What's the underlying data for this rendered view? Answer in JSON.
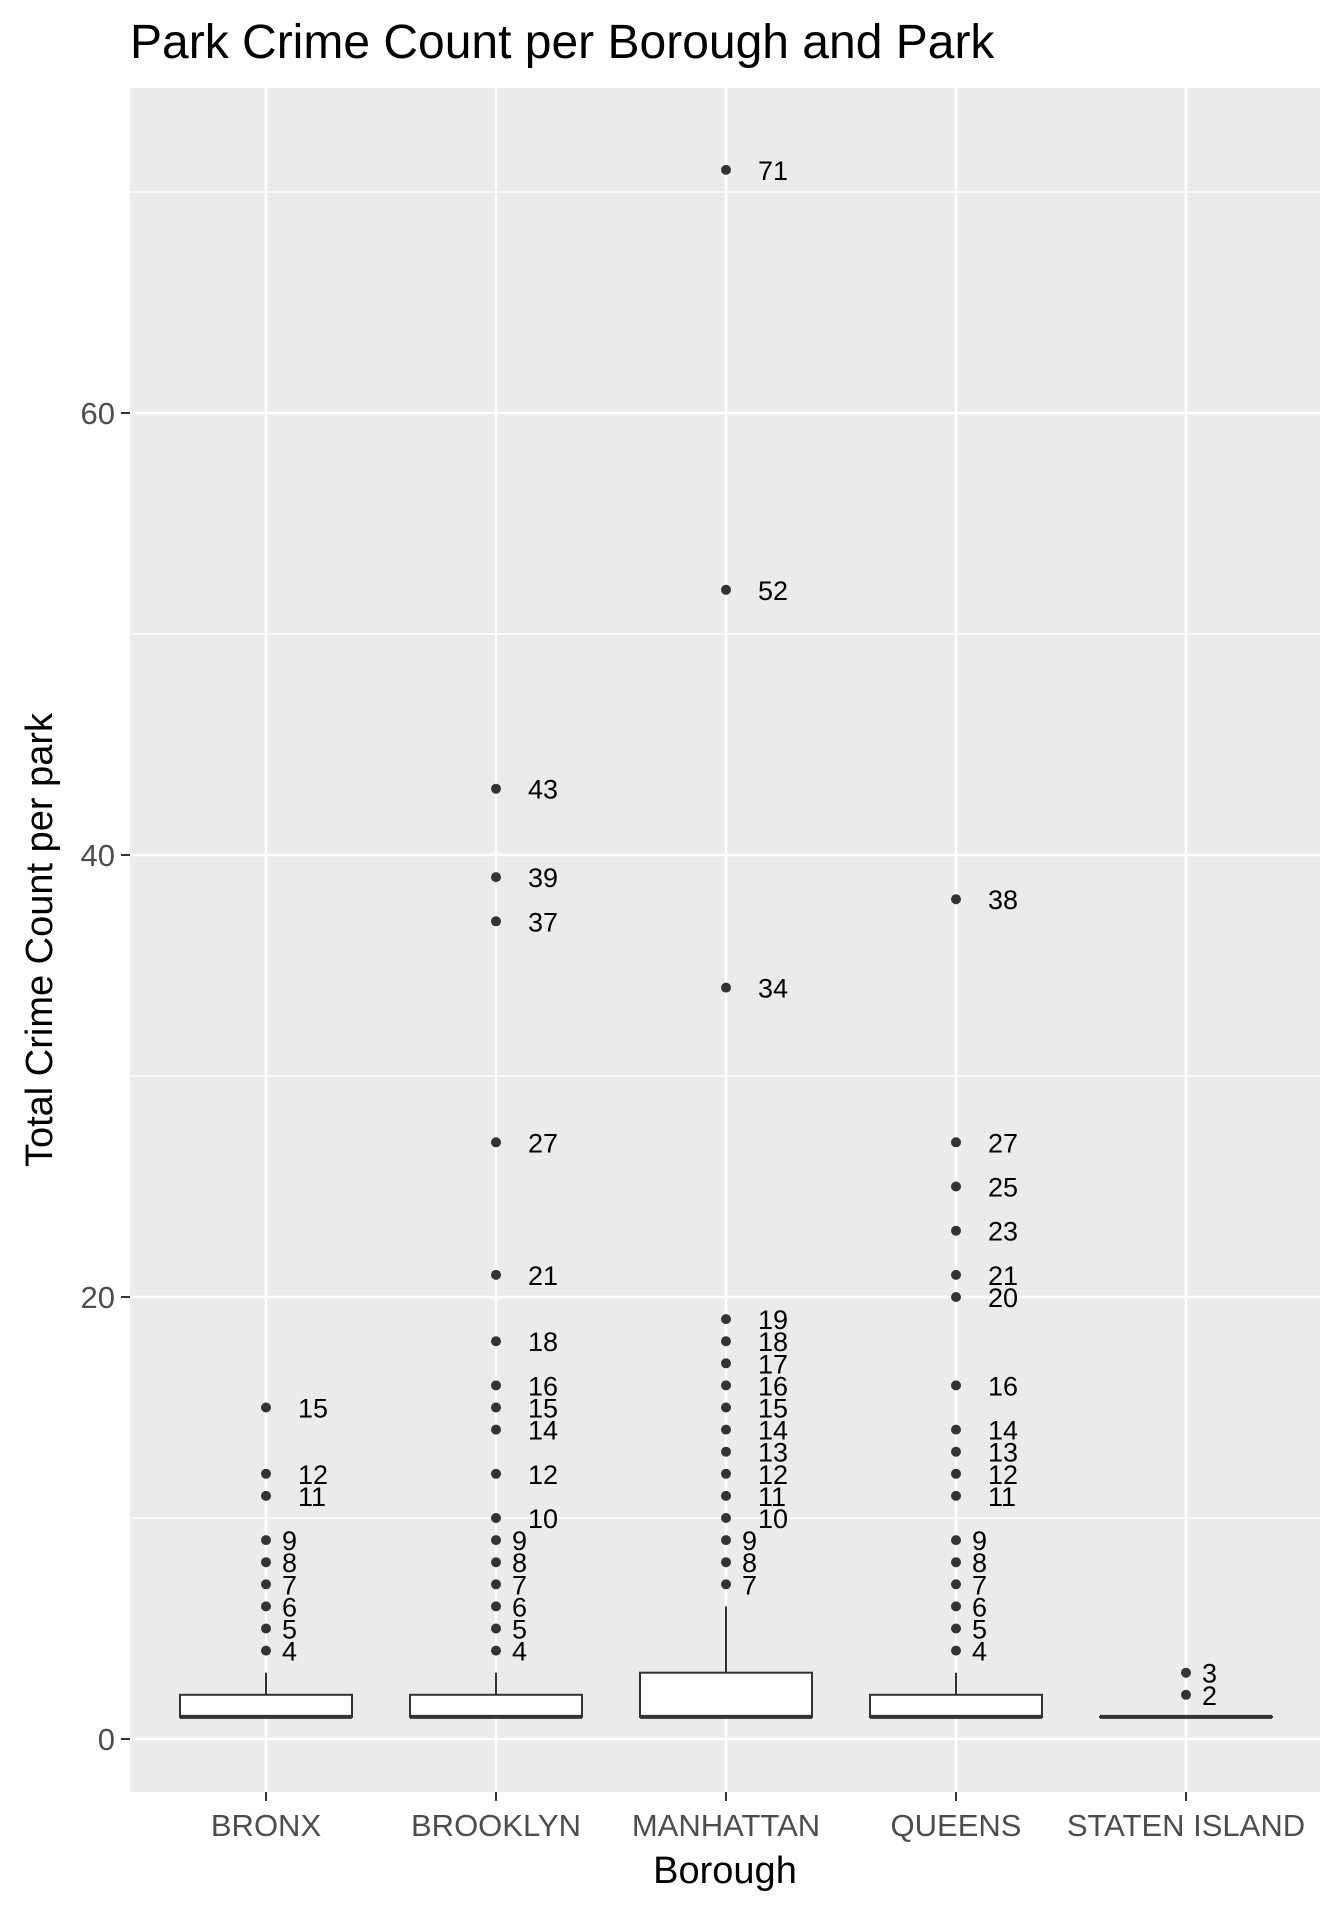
{
  "chart_data": {
    "type": "boxplot",
    "title": "Park Crime Count per Borough and Park",
    "xlabel": "Borough",
    "ylabel": "Total Crime Count per park",
    "categories": [
      "BRONX",
      "BROOKLYN",
      "MANHATTAN",
      "QUEENS",
      "STATEN ISLAND"
    ],
    "ylim": [
      -2.5,
      72.5
    ],
    "yticks": [
      0,
      20,
      40,
      60
    ],
    "y_tick_labels": [
      "0",
      "20",
      "40",
      "60"
    ],
    "grid": true,
    "legend": "none",
    "boxes": [
      {
        "category": "BRONX",
        "q1": 1,
        "median": 1,
        "q3": 2,
        "whisker_low": 1,
        "whisker_high": 3,
        "outliers": [
          4,
          5,
          6,
          7,
          8,
          9,
          11,
          12,
          15
        ],
        "outlier_labels": [
          "4",
          "5",
          "6",
          "7",
          "8",
          "9",
          "11",
          "12",
          "15"
        ]
      },
      {
        "category": "BROOKLYN",
        "q1": 1,
        "median": 1,
        "q3": 2,
        "whisker_low": 1,
        "whisker_high": 3,
        "outliers": [
          4,
          5,
          6,
          7,
          8,
          9,
          10,
          12,
          14,
          15,
          16,
          18,
          21,
          27,
          37,
          39,
          43
        ],
        "outlier_labels": [
          "4",
          "5",
          "6",
          "7",
          "8",
          "9",
          "10",
          "12",
          "14",
          "15",
          "16",
          "18",
          "21",
          "27",
          "37",
          "39",
          "43"
        ]
      },
      {
        "category": "MANHATTAN",
        "q1": 1,
        "median": 1,
        "q3": 3,
        "whisker_low": 1,
        "whisker_high": 6,
        "outliers": [
          7,
          8,
          9,
          10,
          11,
          12,
          13,
          14,
          15,
          16,
          17,
          18,
          19,
          34,
          52,
          71
        ],
        "outlier_labels": [
          "7",
          "8",
          "9",
          "10",
          "11",
          "12",
          "13",
          "14",
          "15",
          "16",
          "17",
          "18",
          "19",
          "34",
          "52",
          "71"
        ]
      },
      {
        "category": "QUEENS",
        "q1": 1,
        "median": 1,
        "q3": 2,
        "whisker_low": 1,
        "whisker_high": 3,
        "outliers": [
          4,
          5,
          6,
          7,
          8,
          9,
          11,
          12,
          13,
          14,
          16,
          20,
          21,
          23,
          25,
          27,
          38
        ],
        "outlier_labels": [
          "4",
          "5",
          "6",
          "7",
          "8",
          "9",
          "11",
          "12",
          "13",
          "14",
          "16",
          "20",
          "21",
          "23",
          "25",
          "27",
          "38"
        ]
      },
      {
        "category": "STATEN ISLAND",
        "q1": 1,
        "median": 1,
        "q3": 1,
        "whisker_low": 1,
        "whisker_high": 1,
        "outliers": [
          2,
          3
        ],
        "outlier_labels": [
          "2",
          "3"
        ]
      }
    ],
    "colors": {
      "panel_background": "#ebebeb",
      "grid_major": "#ffffff",
      "box_fill": "#ffffff",
      "box_stroke": "#333333",
      "outlier": "#333333"
    }
  }
}
